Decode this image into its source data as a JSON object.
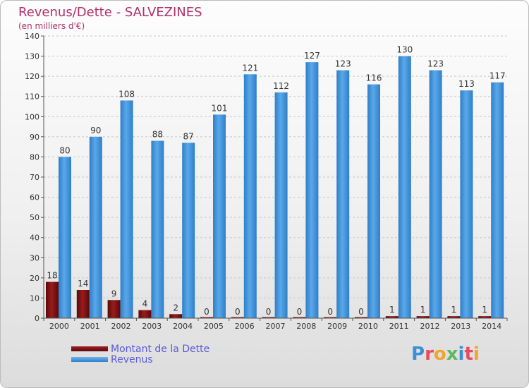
{
  "header": {
    "title": "Revenus/Dette - SALVEZINES",
    "subtitle": "(en milliers d'€)"
  },
  "brand": {
    "logo_text": "Proxiti",
    "colors": [
      "#3a8fd8",
      "#e84a5f",
      "#f2a42e",
      "#5cb85c",
      "#3a8fd8",
      "#e84a5f",
      "#f2a42e"
    ]
  },
  "chart_data": {
    "type": "bar",
    "categories": [
      "2000",
      "2001",
      "2002",
      "2003",
      "2004",
      "2005",
      "2006",
      "2007",
      "2008",
      "2009",
      "2010",
      "2011",
      "2012",
      "2013",
      "2014"
    ],
    "series": [
      {
        "name": "Montant de la Dette",
        "color": "#7a0f0f",
        "values": [
          18,
          14,
          9,
          4,
          2,
          0,
          0,
          0,
          0,
          0,
          0,
          1,
          1,
          1,
          1
        ]
      },
      {
        "name": "Revenus",
        "color": "#3a8fd8",
        "values": [
          80,
          90,
          108,
          88,
          87,
          101,
          121,
          112,
          127,
          123,
          116,
          130,
          123,
          113,
          117
        ]
      }
    ],
    "ylim": [
      0,
      140
    ],
    "yticks": [
      0,
      10,
      20,
      30,
      40,
      50,
      60,
      70,
      80,
      90,
      100,
      110,
      120,
      130,
      140
    ],
    "grid": true,
    "legend": "bottom-left"
  }
}
